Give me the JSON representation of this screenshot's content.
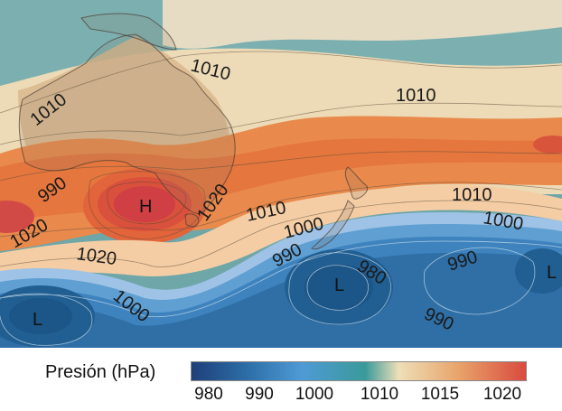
{
  "map": {
    "isobar_labels": [
      "1010",
      "1010",
      "1010",
      "1010",
      "1000",
      "990",
      "1000",
      "990",
      "980",
      "990",
      "990",
      "1020",
      "1020",
      "1020",
      "1010",
      "1000"
    ],
    "pressure_centers": [
      "H",
      "L",
      "L",
      "L"
    ]
  },
  "legend": {
    "title": "Presión (hPa)",
    "ticks": [
      "980",
      "990",
      "1000",
      "1010",
      "1015",
      "1020"
    ],
    "colors": [
      "#1f3f7a",
      "#2d6fa8",
      "#4f9ad6",
      "#3a9a9a",
      "#eedfb8",
      "#e8a36a",
      "#d94a3f"
    ]
  }
}
